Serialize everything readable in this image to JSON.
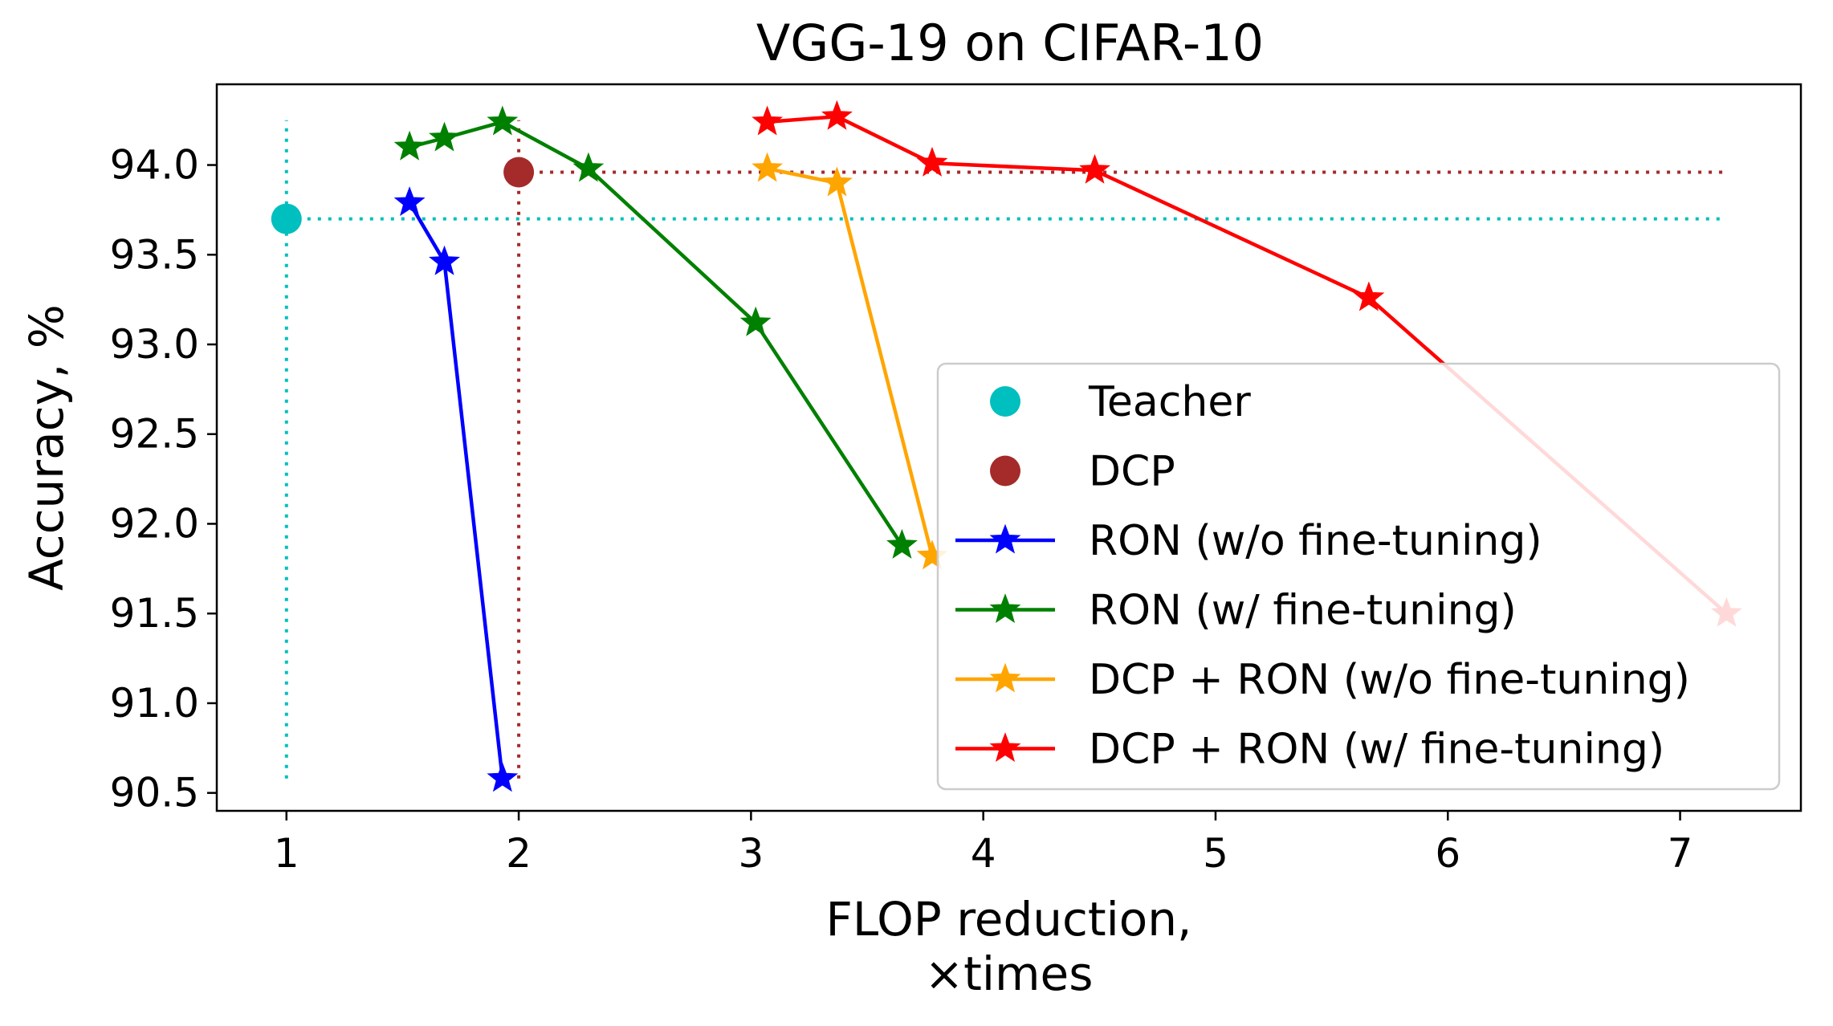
{
  "chart_data": {
    "type": "line",
    "title": "VGG-19 on CIFAR-10",
    "xlabel": [
      "FLOP reduction,",
      "×times"
    ],
    "ylabel": "Accuracy, %",
    "xlim": [
      0.7,
      7.52
    ],
    "ylim": [
      90.4,
      94.45
    ],
    "x_ticks": [
      1,
      2,
      3,
      4,
      5,
      6,
      7
    ],
    "x_tick_labels": [
      "1",
      "2",
      "3",
      "4",
      "5",
      "6",
      "7"
    ],
    "y_ticks": [
      90.5,
      91.0,
      91.5,
      92.0,
      92.5,
      93.0,
      93.5,
      94.0
    ],
    "y_tick_labels": [
      "90.5",
      "91.0",
      "91.5",
      "92.0",
      "92.5",
      "93.0",
      "93.5",
      "94.0"
    ],
    "grid": false,
    "legend_position": "lower-right",
    "reference_points": [
      {
        "name": "Teacher",
        "x": 1.0,
        "y": 93.7,
        "color": "#00bfbf",
        "marker": "circle",
        "guide_lines": {
          "vertical_range": [
            90.58,
            94.25
          ],
          "horizontal_to_x": 7.2
        }
      },
      {
        "name": "DCP",
        "x": 2.0,
        "y": 93.96,
        "color": "#a52a2a",
        "marker": "circle",
        "guide_lines": {
          "vertical_range": [
            90.58,
            94.25
          ],
          "horizontal_to_x": 7.2
        }
      }
    ],
    "series": [
      {
        "name": "RON (w/o fine-tuning)",
        "color": "#0000ff",
        "marker": "star",
        "x": [
          1.53,
          1.68,
          1.93
        ],
        "y": [
          93.79,
          93.46,
          90.58
        ]
      },
      {
        "name": "RON (w/ fine-tuning)",
        "color": "#008000",
        "marker": "star",
        "x": [
          1.53,
          1.68,
          1.93,
          2.3,
          3.02,
          3.65
        ],
        "y": [
          94.1,
          94.15,
          94.24,
          93.98,
          93.12,
          91.88
        ]
      },
      {
        "name": "DCP + RON (w/o fine-tuning)",
        "color": "#ffa500",
        "marker": "star",
        "x": [
          3.07,
          3.37,
          3.78
        ],
        "y": [
          93.98,
          93.9,
          91.82
        ]
      },
      {
        "name": "DCP + RON (w/ fine-tuning)",
        "color": "#ff0000",
        "marker": "star",
        "x": [
          3.07,
          3.37,
          3.78,
          4.48,
          5.66,
          7.2
        ],
        "y": [
          94.24,
          94.27,
          94.01,
          93.97,
          93.26,
          91.5
        ]
      }
    ]
  }
}
